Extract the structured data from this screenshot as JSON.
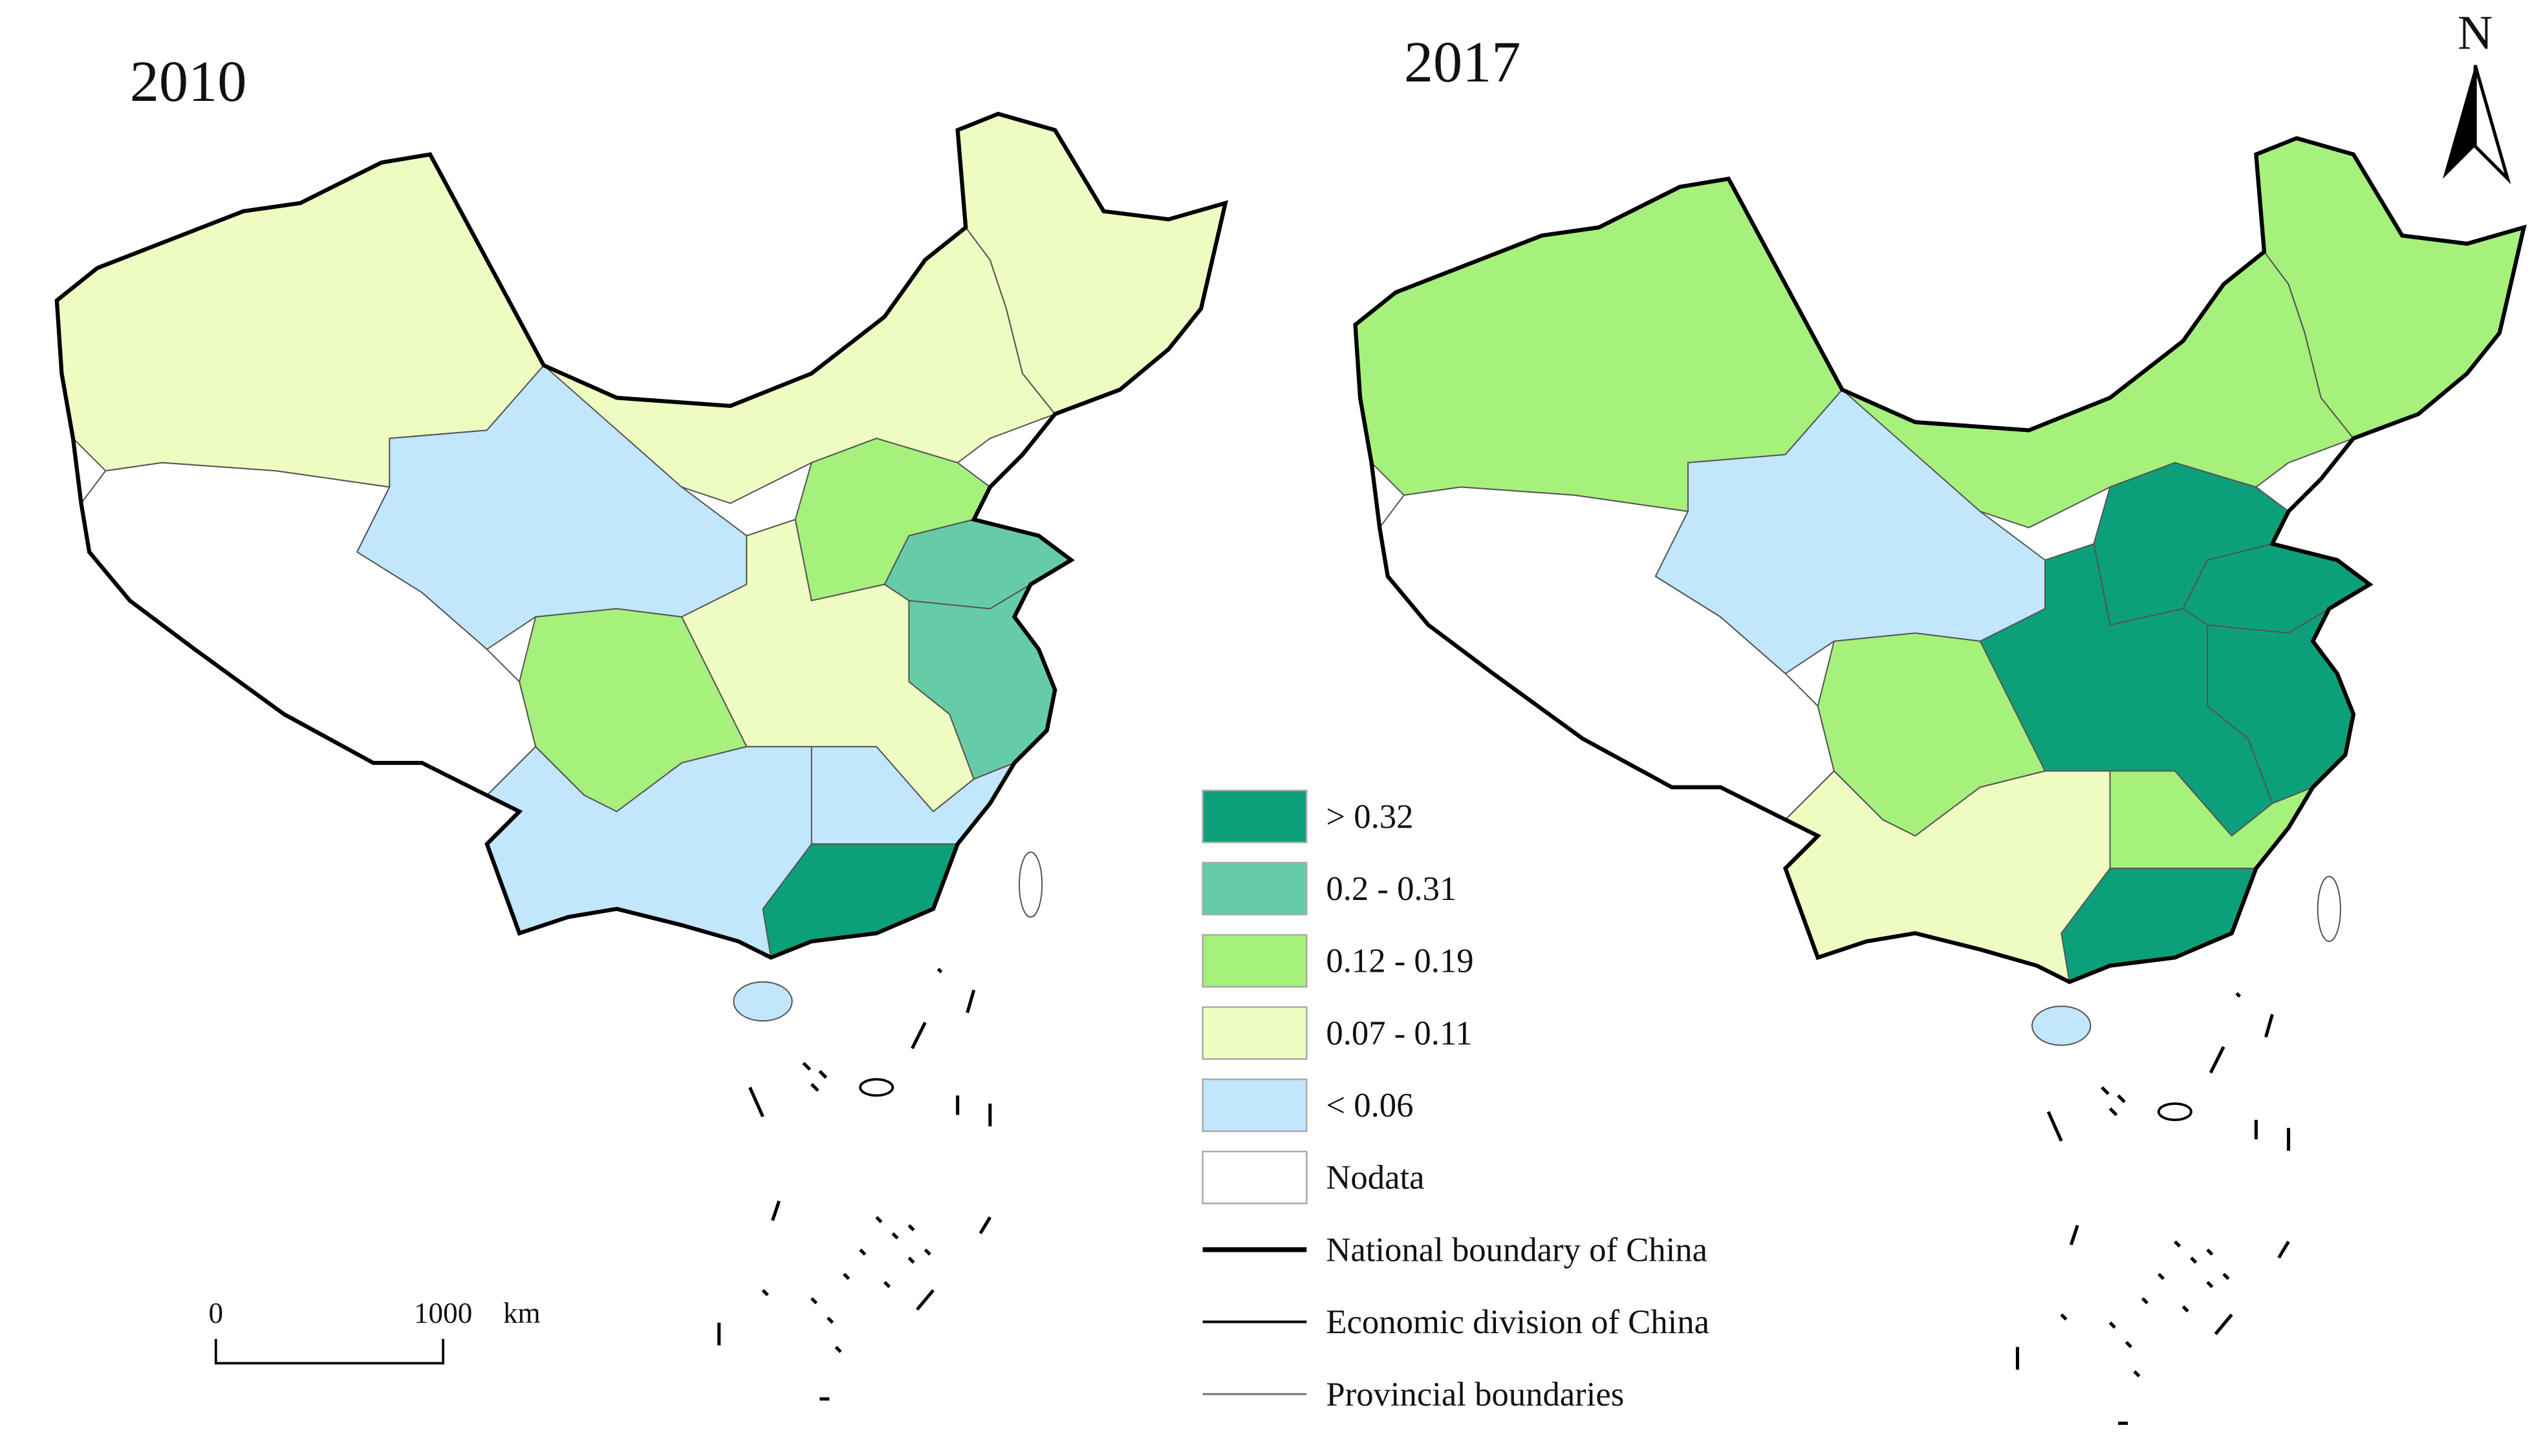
{
  "maps": [
    {
      "title": "2010"
    },
    {
      "title": "2017"
    }
  ],
  "legend": {
    "classes": [
      {
        "label": "> 0.32",
        "color": "#0ba07a"
      },
      {
        "label": "0.2 - 0.31",
        "color": "#66cca8"
      },
      {
        "label": "0.12 - 0.19",
        "color": "#a6f07c"
      },
      {
        "label": "0.07 - 0.11",
        "color": "#eefcc2"
      },
      {
        "label": "< 0.06",
        "color": "#c2e6fc"
      },
      {
        "label": "Nodata",
        "color": "#ffffff"
      }
    ],
    "lines": [
      {
        "label": "National boundary of China",
        "width": 3,
        "color": "#000000"
      },
      {
        "label": "Economic division of China",
        "width": 1.6,
        "color": "#000000"
      },
      {
        "label": "Provincial boundaries",
        "width": 1.2,
        "color": "#777777"
      }
    ]
  },
  "scale_bar": {
    "start": "0",
    "end": "1000",
    "unit": "km"
  },
  "north_arrow": {
    "label": "N"
  }
}
